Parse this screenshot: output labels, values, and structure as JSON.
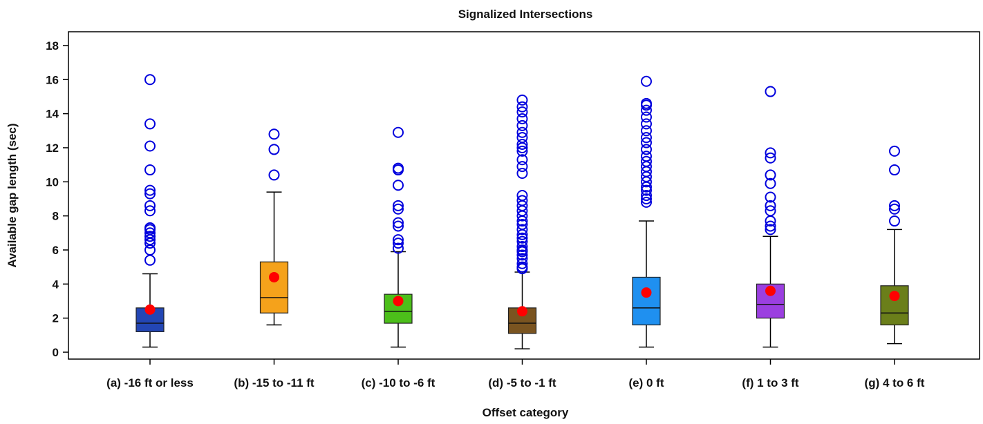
{
  "chart_data": {
    "type": "box",
    "title": "Signalized Intersections",
    "xlabel": "Offset category",
    "ylabel": "Available gap length (sec)",
    "ylim": [
      -0.5,
      18.5
    ],
    "yticks": [
      0,
      2,
      4,
      6,
      8,
      10,
      12,
      14,
      16,
      18
    ],
    "grid": false,
    "legend": "none",
    "mean_marker_color": "#ff0000",
    "outlier_color": "#0000dd",
    "categories": [
      {
        "label": "(a) -16 ft or less",
        "color": "#2346b4",
        "whisker_low": 0.3,
        "q1": 1.2,
        "median": 1.7,
        "q3": 2.6,
        "whisker_high": 4.6,
        "mean": 2.5,
        "outliers": [
          5.4,
          6.0,
          6.4,
          6.6,
          6.8,
          7.0,
          7.2,
          7.3,
          8.3,
          8.6,
          9.3,
          9.5,
          10.7,
          12.1,
          13.4,
          16.0
        ]
      },
      {
        "label": "(b) -15 to -11 ft",
        "color": "#f5a21b",
        "whisker_low": 1.6,
        "q1": 2.3,
        "median": 3.2,
        "q3": 5.3,
        "whisker_high": 9.4,
        "mean": 4.4,
        "outliers": [
          10.4,
          11.9,
          12.8
        ]
      },
      {
        "label": "(c) -10 to -6 ft",
        "color": "#4cbf1a",
        "whisker_low": 0.3,
        "q1": 1.7,
        "median": 2.4,
        "q3": 3.4,
        "whisker_high": 5.9,
        "mean": 3.0,
        "outliers": [
          6.1,
          6.4,
          6.6,
          7.4,
          7.6,
          8.4,
          8.6,
          9.8,
          10.7,
          10.8,
          12.9
        ]
      },
      {
        "label": "(d) -5 to -1 ft",
        "color": "#7a5420",
        "whisker_low": 0.2,
        "q1": 1.1,
        "median": 1.7,
        "q3": 2.6,
        "whisker_high": 4.7,
        "mean": 2.4,
        "outliers": [
          4.9,
          5.0,
          5.2,
          5.5,
          5.7,
          5.9,
          6.0,
          6.2,
          6.5,
          6.7,
          6.9,
          7.2,
          7.5,
          7.7,
          8.0,
          8.3,
          8.6,
          8.9,
          9.2,
          10.5,
          10.9,
          11.3,
          11.8,
          12.0,
          12.2,
          12.6,
          12.9,
          13.3,
          13.7,
          14.1,
          14.4,
          14.8
        ]
      },
      {
        "label": "(e) 0 ft",
        "color": "#1f90f0",
        "whisker_low": 0.3,
        "q1": 1.6,
        "median": 2.6,
        "q3": 4.4,
        "whisker_high": 7.7,
        "mean": 3.5,
        "outliers": [
          8.8,
          9.0,
          9.2,
          9.5,
          9.7,
          10.0,
          10.3,
          10.6,
          10.9,
          11.2,
          11.5,
          11.9,
          12.3,
          12.6,
          13.0,
          13.4,
          13.8,
          14.2,
          14.5,
          14.6,
          15.9
        ]
      },
      {
        "label": "(f) 1 to 3 ft",
        "color": "#9b3fe0",
        "whisker_low": 0.3,
        "q1": 2.0,
        "median": 2.8,
        "q3": 4.0,
        "whisker_high": 6.8,
        "mean": 3.6,
        "outliers": [
          7.2,
          7.4,
          7.7,
          8.3,
          8.6,
          9.1,
          9.9,
          10.4,
          11.4,
          11.7,
          15.3
        ]
      },
      {
        "label": "(g) 4 to 6 ft",
        "color": "#6b7f1a",
        "whisker_low": 0.5,
        "q1": 1.6,
        "median": 2.3,
        "q3": 3.9,
        "whisker_high": 7.2,
        "mean": 3.3,
        "outliers": [
          7.7,
          8.4,
          8.6,
          10.7,
          11.8
        ]
      }
    ]
  }
}
